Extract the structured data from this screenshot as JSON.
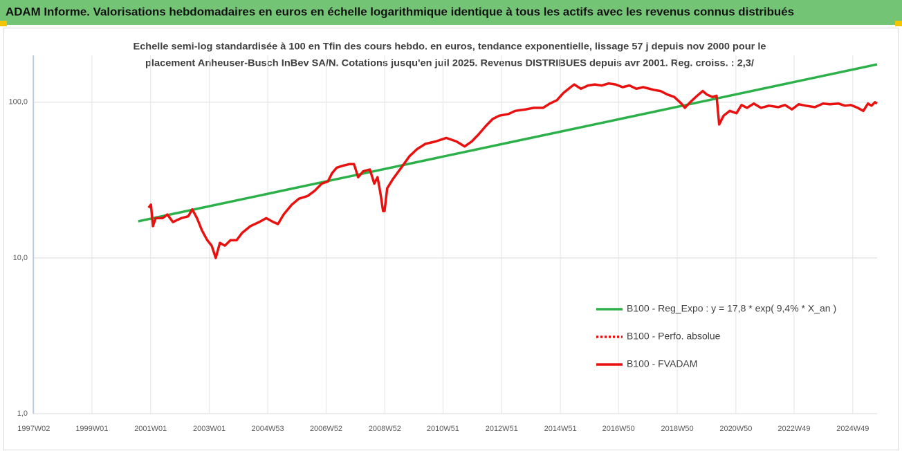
{
  "header": {
    "title": "ADAM Informe. Valorisations hebdomadaires en euros en échelle logarithmique identique à tous les actifs avec les revenus connus distribués"
  },
  "chart_data": {
    "type": "line",
    "subtitle": [
      "Echelle semi-log standardisée à 100 en Tfin des cours hebdo. en euros, tendance exponentielle, lissage 57 j depuis nov 2000 pour le",
      "placement Anheuser-Busch InBev SA/N. Cotations jusqu'en juil 2025. Revenus DISTRIBUES depuis avr 2001. Reg. croiss. : 2,3/"
    ],
    "log_scale": true,
    "grid": true,
    "legend": "right",
    "xlim": [
      1997.0,
      2025.75
    ],
    "xticks": [
      {
        "value": 1997.02,
        "label": "1997W02"
      },
      {
        "value": 1999.0,
        "label": "1999W01"
      },
      {
        "value": 2001.0,
        "label": "2001W01"
      },
      {
        "value": 2003.0,
        "label": "2003W01"
      },
      {
        "value": 2004.99,
        "label": "2004W53"
      },
      {
        "value": 2006.98,
        "label": "2006W52"
      },
      {
        "value": 2008.98,
        "label": "2008W52"
      },
      {
        "value": 2010.96,
        "label": "2010W51"
      },
      {
        "value": 2012.96,
        "label": "2012W51"
      },
      {
        "value": 2014.96,
        "label": "2014W51"
      },
      {
        "value": 2016.94,
        "label": "2016W50"
      },
      {
        "value": 2018.94,
        "label": "2018W50"
      },
      {
        "value": 2020.94,
        "label": "2020W50"
      },
      {
        "value": 2022.92,
        "label": "2022W49"
      },
      {
        "value": 2024.92,
        "label": "2024W49"
      }
    ],
    "ylim": [
      1,
      200
    ],
    "yticks": [
      {
        "value": 1,
        "label": "1,0"
      },
      {
        "value": 10,
        "label": "10,0"
      },
      {
        "value": 100,
        "label": "100,0"
      }
    ],
    "series": [
      {
        "name": "B100 - Reg_Expo : y = 17,8 * exp( 9,4% *  X_an )",
        "color": "#2bb04a",
        "style": "solid",
        "x": [
          2000.58,
          2025.75
        ],
        "values": [
          17.2,
          175
        ]
      },
      {
        "name": "B100 - Perfo. absolue",
        "color": "#e8110f",
        "style": "dotted",
        "x": [],
        "values": []
      },
      {
        "name": "B100 - FVADAM",
        "color": "#e8110f",
        "style": "solid",
        "x": [
          2000.93,
          2001.01,
          2001.08,
          2001.17,
          2001.41,
          2001.57,
          2001.76,
          2002.04,
          2002.28,
          2002.42,
          2002.58,
          2002.75,
          2002.93,
          2003.08,
          2003.22,
          2003.36,
          2003.53,
          2003.72,
          2003.93,
          2004.12,
          2004.4,
          2004.7,
          2004.94,
          2005.18,
          2005.34,
          2005.53,
          2005.81,
          2006.05,
          2006.35,
          2006.59,
          2006.83,
          2007.04,
          2007.18,
          2007.34,
          2007.53,
          2007.77,
          2007.93,
          2008.07,
          2008.24,
          2008.47,
          2008.62,
          2008.73,
          2008.83,
          2008.92,
          2008.97,
          2009.06,
          2009.25,
          2009.54,
          2009.82,
          2010.08,
          2010.36,
          2010.71,
          2011.07,
          2011.42,
          2011.7,
          2011.94,
          2012.17,
          2012.41,
          2012.65,
          2012.88,
          2013.19,
          2013.42,
          2013.78,
          2014.06,
          2014.37,
          2014.6,
          2014.84,
          2015.07,
          2015.31,
          2015.43,
          2015.66,
          2015.9,
          2016.13,
          2016.37,
          2016.61,
          2016.84,
          2017.08,
          2017.31,
          2017.55,
          2017.78,
          2018.14,
          2018.37,
          2018.61,
          2018.84,
          2019.08,
          2019.2,
          2019.38,
          2019.62,
          2019.81,
          2019.95,
          2020.14,
          2020.28,
          2020.37,
          2020.52,
          2020.73,
          2020.96,
          2021.13,
          2021.32,
          2021.55,
          2021.79,
          2022.07,
          2022.38,
          2022.61,
          2022.85,
          2023.08,
          2023.32,
          2023.63,
          2023.91,
          2024.14,
          2024.43,
          2024.66,
          2024.85,
          2025.09,
          2025.28,
          2025.44,
          2025.56,
          2025.68,
          2025.75
        ],
        "values": [
          21,
          22,
          16,
          18,
          18,
          19,
          17,
          18,
          18.5,
          20.5,
          18,
          15,
          13,
          12,
          10,
          12.5,
          12,
          13,
          13,
          14.5,
          16,
          17,
          18,
          17,
          16.5,
          19,
          22,
          24,
          25,
          27,
          30,
          31,
          35,
          38,
          39,
          40,
          40,
          33,
          36,
          37,
          30,
          33,
          26,
          20,
          20,
          28,
          32,
          38,
          45,
          50,
          54,
          56,
          59,
          56,
          52,
          56,
          62,
          70,
          78,
          82,
          84,
          88,
          90,
          92,
          92,
          98,
          103,
          115,
          125,
          130,
          122,
          128,
          130,
          128,
          132,
          130,
          125,
          128,
          122,
          125,
          120,
          118,
          112,
          108,
          98,
          92,
          100,
          110,
          118,
          112,
          108,
          110,
          72,
          82,
          88,
          85,
          96,
          92,
          98,
          92,
          95,
          93,
          96,
          90,
          97,
          95,
          93,
          98,
          97,
          98,
          95,
          96,
          92,
          88,
          98,
          95,
          100,
          98
        ]
      }
    ]
  }
}
